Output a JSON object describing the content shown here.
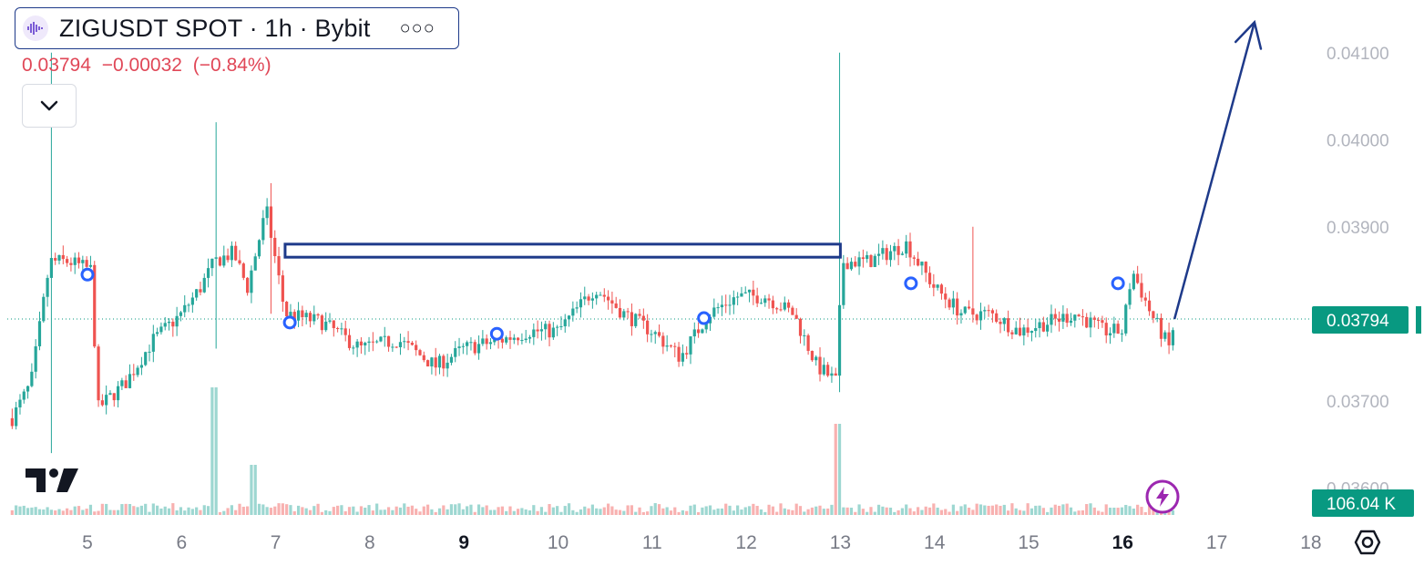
{
  "legend": {
    "title": "ZIGUSDT SPOT · 1h · Bybit",
    "more_label": "○○○",
    "last_value": "0.03794",
    "change": "−0.00032",
    "change_pct": "(−0.84%)"
  },
  "icons": {
    "symbol_logo": "zig-logo-icon",
    "collapse": "chevron-down-icon",
    "brand": "tradingview-logo-icon",
    "flash": "lightning-icon",
    "settings": "gear-icon"
  },
  "colors": {
    "up": "#26a69a",
    "down": "#ef5350",
    "annotation": "#1e3a8a",
    "marker": "#2962ff",
    "price_label_bg": "#089981"
  },
  "chart_data": {
    "type": "candlestick",
    "symbol": "ZIGUSDT",
    "interval": "1h",
    "exchange": "Bybit",
    "x_ticks": [
      "5",
      "6",
      "7",
      "8",
      "9",
      "10",
      "11",
      "12",
      "13",
      "14",
      "15",
      "16",
      "17",
      "18"
    ],
    "bold_x_ticks": [
      "9",
      "16"
    ],
    "y_ticks": [
      "0.04100",
      "0.04000",
      "0.03900",
      "0.03700",
      "0.03600"
    ],
    "ylim": [
      0.0358,
      0.0414
    ],
    "last_price_label": "0.03794",
    "volume_label": "106.04 K",
    "key_levels": [
      {
        "day": 4.6,
        "high": 0.041,
        "low": 0.0364
      },
      {
        "day": 6.35,
        "high": 0.0402,
        "low": 0.0376
      },
      {
        "day": 6.95,
        "high": 0.0395,
        "low": 0.038
      },
      {
        "day": 12.98,
        "high": 0.041,
        "low": 0.0371
      },
      {
        "day": 14.4,
        "high": 0.039,
        "low": 0.0379
      }
    ],
    "close_path": [
      [
        4.2,
        0.0368
      ],
      [
        4.4,
        0.0372
      ],
      [
        4.6,
        0.0386
      ],
      [
        4.8,
        0.0386
      ],
      [
        5.05,
        0.0385
      ],
      [
        5.1,
        0.0369
      ],
      [
        5.4,
        0.0372
      ],
      [
        5.7,
        0.0377
      ],
      [
        6.0,
        0.038
      ],
      [
        6.2,
        0.0383
      ],
      [
        6.35,
        0.0386
      ],
      [
        6.55,
        0.0387
      ],
      [
        6.7,
        0.0383
      ],
      [
        6.9,
        0.0392
      ],
      [
        7.1,
        0.038
      ],
      [
        7.5,
        0.0379
      ],
      [
        7.9,
        0.0376
      ],
      [
        8.3,
        0.0377
      ],
      [
        8.7,
        0.0374
      ],
      [
        9.0,
        0.0376
      ],
      [
        9.4,
        0.0377
      ],
      [
        9.7,
        0.0378
      ],
      [
        10.0,
        0.0378
      ],
      [
        10.4,
        0.0383
      ],
      [
        10.7,
        0.038
      ],
      [
        11.0,
        0.0378
      ],
      [
        11.3,
        0.0375
      ],
      [
        11.6,
        0.038
      ],
      [
        11.9,
        0.0382
      ],
      [
        12.2,
        0.0382
      ],
      [
        12.5,
        0.038
      ],
      [
        12.75,
        0.0374
      ],
      [
        12.98,
        0.0372
      ],
      [
        13.0,
        0.0386
      ],
      [
        13.3,
        0.0386
      ],
      [
        13.7,
        0.0388
      ],
      [
        14.0,
        0.0383
      ],
      [
        14.3,
        0.038
      ],
      [
        14.6,
        0.038
      ],
      [
        14.9,
        0.0378
      ],
      [
        15.2,
        0.0379
      ],
      [
        15.5,
        0.038
      ],
      [
        15.8,
        0.0378
      ],
      [
        16.0,
        0.0378
      ],
      [
        16.1,
        0.0385
      ],
      [
        16.3,
        0.038
      ],
      [
        16.5,
        0.0376
      ],
      [
        16.55,
        0.03794
      ]
    ],
    "rectangle": {
      "day_start": 7.1,
      "day_end": 13.0,
      "top": 0.0388,
      "bottom": 0.03865
    },
    "arrow": {
      "from": [
        16.55,
        0.03794
      ],
      "to": [
        17.4,
        0.04135
      ]
    },
    "markers": [
      {
        "day": 5.0,
        "price": 0.03845
      },
      {
        "day": 7.15,
        "price": 0.0379
      },
      {
        "day": 9.35,
        "price": 0.03777
      },
      {
        "day": 11.55,
        "price": 0.03795
      },
      {
        "day": 13.75,
        "price": 0.03835
      },
      {
        "day": 15.95,
        "price": 0.03835
      }
    ]
  }
}
